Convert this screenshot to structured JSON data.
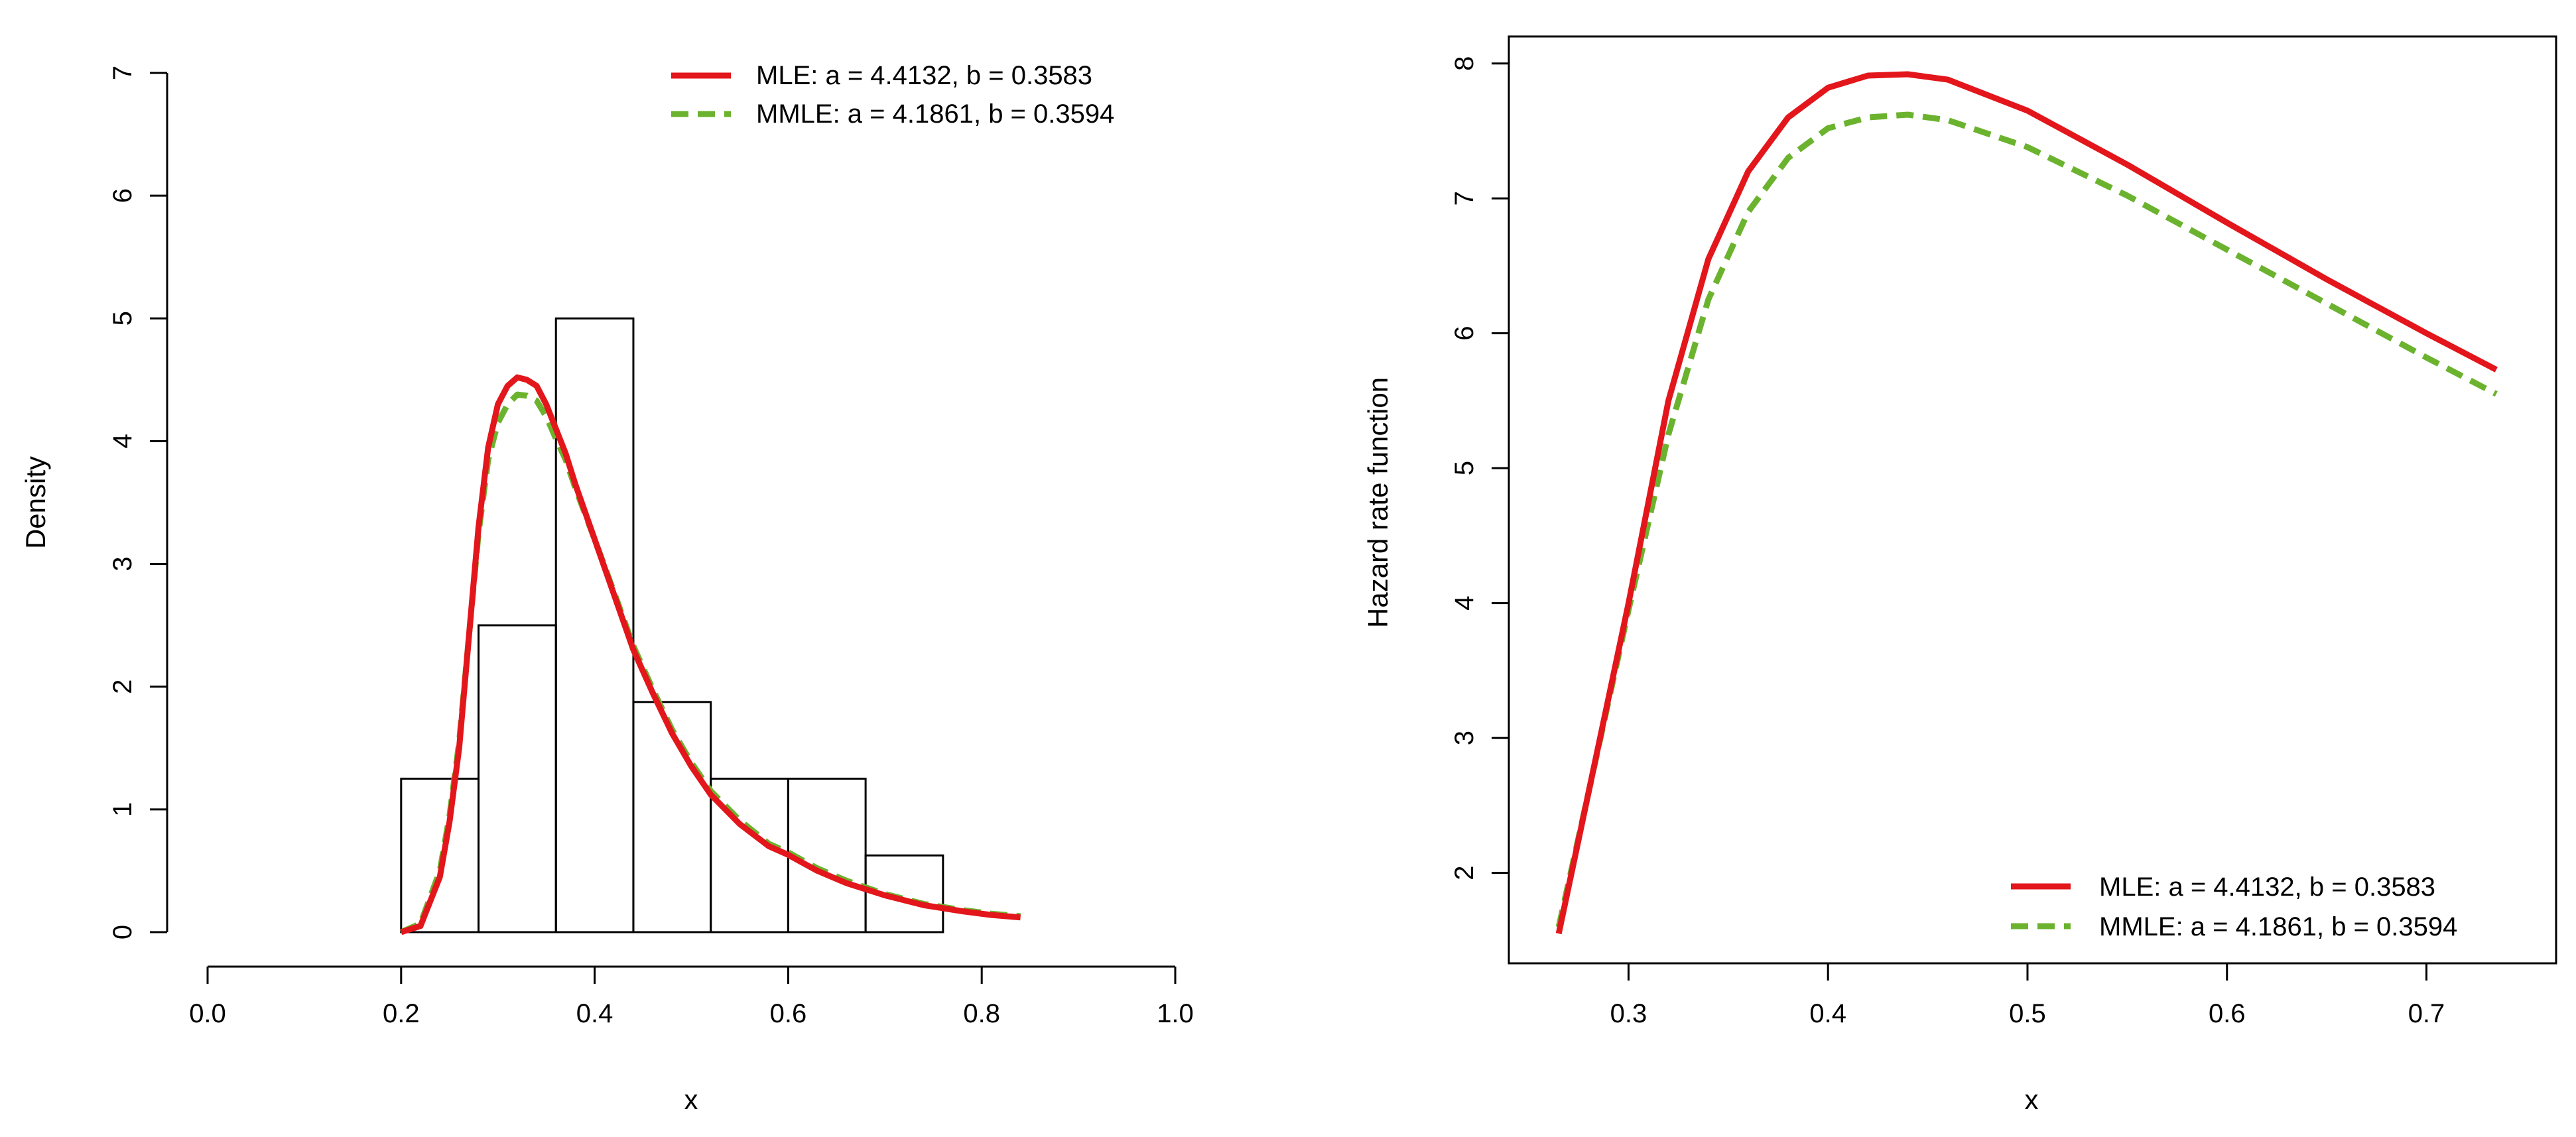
{
  "colors": {
    "mle": "#e3161c",
    "mmle": "#6bb32e",
    "axis": "#000000",
    "background": "#ffffff"
  },
  "chart_data": [
    {
      "type": "histogram",
      "id": "density",
      "xlabel": "x",
      "ylabel": "Density",
      "xlim": [
        0,
        1
      ],
      "ylim": [
        0,
        7
      ],
      "x_ticks": [
        0.0,
        0.2,
        0.4,
        0.6,
        0.8,
        1.0
      ],
      "x_tick_labels": [
        "0.0",
        "0.2",
        "0.4",
        "0.6",
        "0.8",
        "1.0"
      ],
      "y_ticks": [
        0,
        1,
        2,
        3,
        4,
        5,
        6,
        7
      ],
      "y_tick_labels": [
        "0",
        "1",
        "2",
        "3",
        "4",
        "5",
        "6",
        "7"
      ],
      "bins": [
        {
          "from": 0.2,
          "to": 0.28,
          "density": 1.25
        },
        {
          "from": 0.28,
          "to": 0.36,
          "density": 2.5
        },
        {
          "from": 0.36,
          "to": 0.44,
          "density": 5.0
        },
        {
          "from": 0.44,
          "to": 0.52,
          "density": 1.875
        },
        {
          "from": 0.52,
          "to": 0.6,
          "density": 1.25
        },
        {
          "from": 0.6,
          "to": 0.68,
          "density": 1.25
        },
        {
          "from": 0.68,
          "to": 0.76,
          "density": 0.625
        }
      ],
      "series": [
        {
          "name": "MLE: a = 4.4132, b = 0.3583",
          "style": "solid",
          "color_key": "mle",
          "x": [
            0.2,
            0.22,
            0.24,
            0.25,
            0.26,
            0.27,
            0.28,
            0.29,
            0.3,
            0.31,
            0.32,
            0.33,
            0.34,
            0.35,
            0.36,
            0.37,
            0.38,
            0.4,
            0.42,
            0.44,
            0.46,
            0.48,
            0.5,
            0.52,
            0.55,
            0.58,
            0.6,
            0.63,
            0.66,
            0.7,
            0.74,
            0.78,
            0.81,
            0.84
          ],
          "y": [
            0.0,
            0.05,
            0.45,
            0.9,
            1.5,
            2.4,
            3.3,
            3.95,
            4.3,
            4.45,
            4.52,
            4.5,
            4.45,
            4.3,
            4.1,
            3.9,
            3.65,
            3.2,
            2.75,
            2.3,
            1.95,
            1.62,
            1.35,
            1.12,
            0.88,
            0.7,
            0.63,
            0.5,
            0.4,
            0.3,
            0.22,
            0.17,
            0.14,
            0.12
          ]
        },
        {
          "name": "MMLE: a = 4.1861, b = 0.3594",
          "style": "dashed",
          "color_key": "mmle",
          "x": [
            0.2,
            0.22,
            0.24,
            0.25,
            0.26,
            0.27,
            0.28,
            0.29,
            0.3,
            0.31,
            0.32,
            0.33,
            0.34,
            0.35,
            0.36,
            0.37,
            0.38,
            0.4,
            0.42,
            0.44,
            0.46,
            0.48,
            0.5,
            0.52,
            0.55,
            0.58,
            0.6,
            0.63,
            0.66,
            0.7,
            0.74,
            0.78,
            0.81,
            0.84
          ],
          "y": [
            0.0,
            0.07,
            0.5,
            0.95,
            1.55,
            2.4,
            3.25,
            3.85,
            4.15,
            4.3,
            4.38,
            4.37,
            4.33,
            4.2,
            4.02,
            3.85,
            3.62,
            3.2,
            2.77,
            2.33,
            1.98,
            1.65,
            1.38,
            1.15,
            0.91,
            0.72,
            0.65,
            0.52,
            0.42,
            0.31,
            0.23,
            0.18,
            0.15,
            0.13
          ]
        }
      ],
      "legend_position": "top-right"
    },
    {
      "type": "line",
      "id": "hazard",
      "xlabel": "x",
      "ylabel": "Hazard rate function",
      "xlim": [
        0.24,
        0.765
      ],
      "ylim": [
        1.33,
        8.2
      ],
      "x_ticks": [
        0.3,
        0.4,
        0.5,
        0.6,
        0.7
      ],
      "x_tick_labels": [
        "0.3",
        "0.4",
        "0.5",
        "0.6",
        "0.7"
      ],
      "y_ticks": [
        2,
        3,
        4,
        5,
        6,
        7,
        8
      ],
      "y_tick_labels": [
        "2",
        "3",
        "4",
        "5",
        "6",
        "7",
        "8"
      ],
      "series": [
        {
          "name": "MLE: a = 4.4132, b = 0.3583",
          "style": "solid",
          "color_key": "mle",
          "x": [
            0.265,
            0.28,
            0.3,
            0.32,
            0.34,
            0.36,
            0.38,
            0.4,
            0.42,
            0.44,
            0.46,
            0.5,
            0.55,
            0.6,
            0.65,
            0.7,
            0.735
          ],
          "y": [
            1.55,
            2.6,
            4.0,
            5.5,
            6.55,
            7.2,
            7.6,
            7.82,
            7.91,
            7.92,
            7.88,
            7.65,
            7.25,
            6.82,
            6.4,
            6.0,
            5.73
          ]
        },
        {
          "name": "MMLE: a = 4.1861, b = 0.3594",
          "style": "dashed",
          "color_key": "mmle",
          "x": [
            0.265,
            0.28,
            0.3,
            0.32,
            0.34,
            0.36,
            0.38,
            0.4,
            0.42,
            0.44,
            0.46,
            0.5,
            0.55,
            0.6,
            0.65,
            0.7,
            0.735
          ],
          "y": [
            1.6,
            2.6,
            3.95,
            5.25,
            6.25,
            6.9,
            7.3,
            7.52,
            7.6,
            7.62,
            7.58,
            7.38,
            7.02,
            6.62,
            6.22,
            5.82,
            5.55
          ]
        }
      ],
      "legend_position": "bottom-right"
    }
  ]
}
